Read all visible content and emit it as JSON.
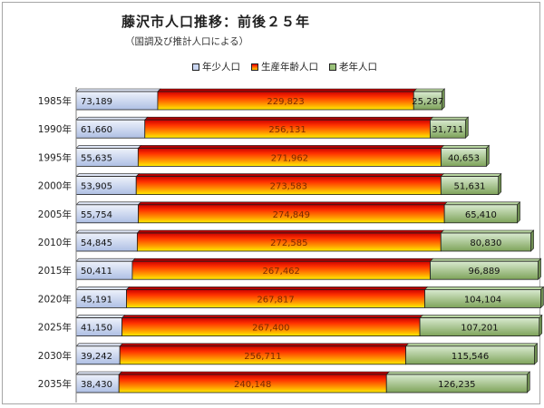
{
  "title": "藤沢市人口推移：前後２５年",
  "subtitle": "（国調及び推計人口による）",
  "legend": [
    {
      "name": "年少人口",
      "color": "#c9d6f2"
    },
    {
      "name": "生産年齢人口",
      "color": "#ff3300"
    },
    {
      "name": "老年人口",
      "color": "#9bc27a"
    }
  ],
  "chart_data": {
    "type": "bar",
    "orientation": "horizontal",
    "stacked": true,
    "categories": [
      "1985年",
      "1990年",
      "1995年",
      "2000年",
      "2005年",
      "2010年",
      "2015年",
      "2020年",
      "2025年",
      "2030年",
      "2035年"
    ],
    "series": [
      {
        "name": "年少人口",
        "values": [
          73189,
          61660,
          55635,
          53905,
          55754,
          54845,
          50411,
          45191,
          41150,
          39242,
          38430
        ]
      },
      {
        "name": "生産年齢人口",
        "values": [
          229823,
          256131,
          271962,
          273583,
          274849,
          272585,
          267462,
          267817,
          267400,
          256711,
          240148
        ]
      },
      {
        "name": "老年人口",
        "values": [
          25287,
          31711,
          40653,
          51631,
          65410,
          80830,
          96889,
          104104,
          107201,
          115546,
          126235
        ]
      }
    ],
    "data_labels": [
      [
        "73,189",
        "229,823",
        "25,287"
      ],
      [
        "61,660",
        "256,131",
        "31,711"
      ],
      [
        "55,635",
        "271,962",
        "40,653"
      ],
      [
        "53,905",
        "273,583",
        "51,631"
      ],
      [
        "55,754",
        "274,849",
        "65,410"
      ],
      [
        "54,845",
        "272,585",
        "80,830"
      ],
      [
        "50,411",
        "267,462",
        "96,889"
      ],
      [
        "45,191",
        "267,817",
        "104,104"
      ],
      [
        "41,150",
        "267,400",
        "107,201"
      ],
      [
        "39,242",
        "256,711",
        "115,546"
      ],
      [
        "38,430",
        "240,148",
        "126,235"
      ]
    ],
    "xlim": [
      0,
      420000
    ],
    "grid": false,
    "legend_position": "top"
  }
}
